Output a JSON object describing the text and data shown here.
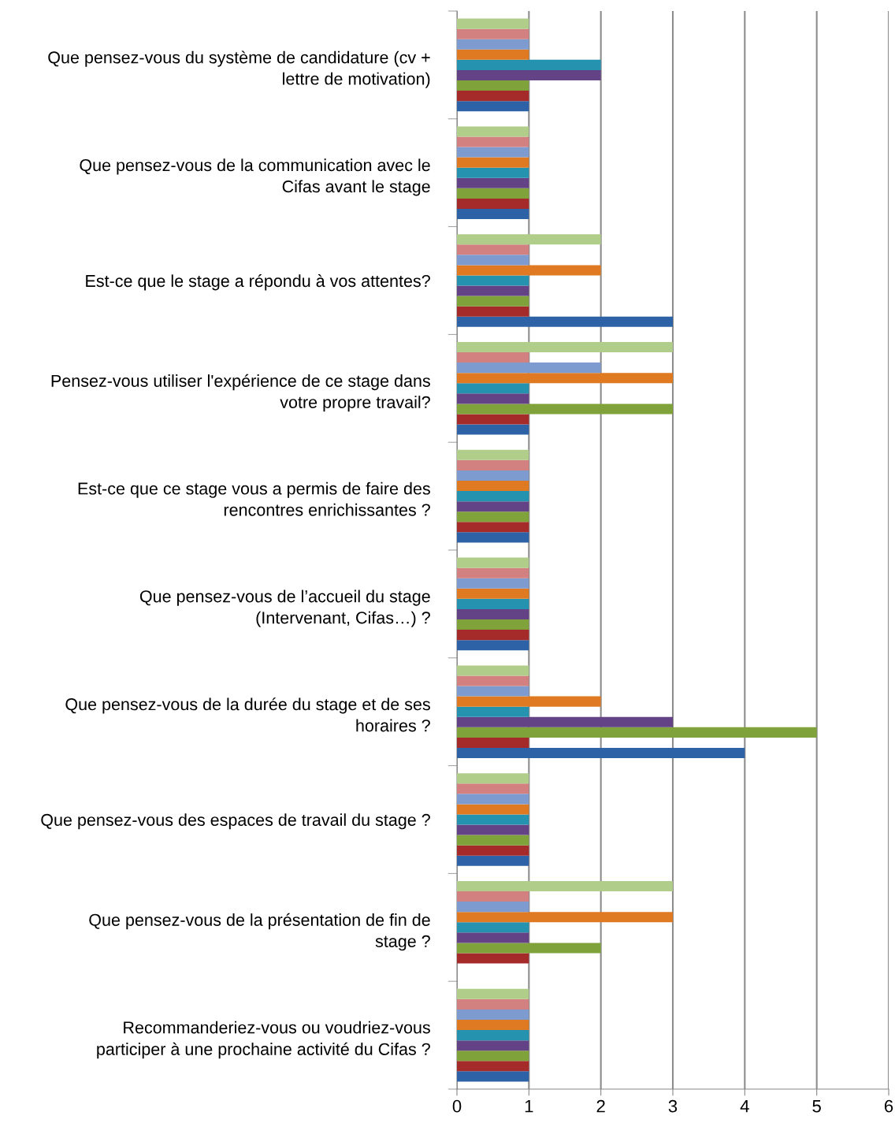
{
  "chart_data": {
    "type": "bar",
    "orientation": "horizontal",
    "categories": [
      "Que pensez-vous du système de candidature (cv +\nlettre de motivation)",
      "Que pensez-vous de la communication avec le\nCifas avant le stage",
      "Est-ce que le stage a répondu à vos attentes?",
      "Pensez-vous utiliser l'expérience de ce stage dans\nvotre propre travail?",
      "Est-ce que ce stage vous a permis de faire des\nrencontres enrichissantes ?",
      "Que pensez-vous de l’accueil du stage\n(Intervenant, Cifas…) ?",
      "Que pensez-vous de la durée du stage et de ses\nhoraires ?",
      "Que pensez-vous des espaces de travail du stage ?",
      "Que pensez-vous de la présentation de fin de\nstage ?",
      "Recommanderiez-vous ou voudriez-vous\nparticiper à une prochaine activité du Cifas ?"
    ],
    "series": [
      {
        "color": "#2e62a6",
        "values": [
          1,
          1,
          3,
          1,
          1,
          1,
          4,
          1,
          0,
          1
        ]
      },
      {
        "color": "#a52a2a",
        "values": [
          1,
          1,
          1,
          1,
          1,
          1,
          1,
          1,
          1,
          1
        ]
      },
      {
        "color": "#7fa23a",
        "values": [
          1,
          1,
          1,
          3,
          1,
          1,
          5,
          1,
          2,
          1
        ]
      },
      {
        "color": "#634385",
        "values": [
          2,
          1,
          1,
          1,
          1,
          1,
          3,
          1,
          1,
          1
        ]
      },
      {
        "color": "#2593b0",
        "values": [
          2,
          1,
          1,
          1,
          1,
          1,
          1,
          1,
          1,
          1
        ]
      },
      {
        "color": "#e07a22",
        "values": [
          1,
          1,
          2,
          3,
          1,
          1,
          2,
          1,
          3,
          1
        ]
      },
      {
        "color": "#7e9bcf",
        "values": [
          1,
          1,
          1,
          2,
          1,
          1,
          1,
          1,
          1,
          1
        ]
      },
      {
        "color": "#d28080",
        "values": [
          1,
          1,
          1,
          1,
          1,
          1,
          1,
          1,
          1,
          1
        ]
      },
      {
        "color": "#b1cd8a",
        "values": [
          1,
          1,
          2,
          3,
          1,
          1,
          1,
          1,
          3,
          1
        ]
      }
    ],
    "xlim": [
      0,
      6
    ],
    "xticks": [
      0,
      1,
      2,
      3,
      4,
      5,
      6
    ],
    "grid": "x",
    "legend": false
  }
}
